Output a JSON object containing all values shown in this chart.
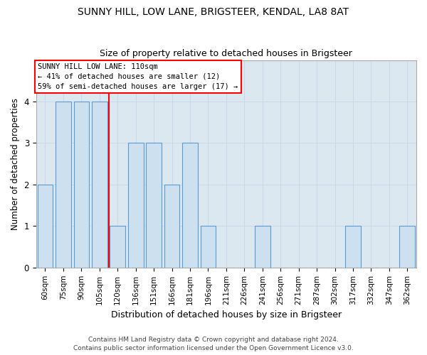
{
  "title1": "SUNNY HILL, LOW LANE, BRIGSTEER, KENDAL, LA8 8AT",
  "title2": "Size of property relative to detached houses in Brigsteer",
  "xlabel": "Distribution of detached houses by size in Brigsteer",
  "ylabel": "Number of detached properties",
  "footer1": "Contains HM Land Registry data © Crown copyright and database right 2024.",
  "footer2": "Contains public sector information licensed under the Open Government Licence v3.0.",
  "bin_labels": [
    "60sqm",
    "75sqm",
    "90sqm",
    "105sqm",
    "120sqm",
    "136sqm",
    "151sqm",
    "166sqm",
    "181sqm",
    "196sqm",
    "211sqm",
    "226sqm",
    "241sqm",
    "256sqm",
    "271sqm",
    "287sqm",
    "302sqm",
    "317sqm",
    "332sqm",
    "347sqm",
    "362sqm"
  ],
  "bar_values": [
    2,
    4,
    4,
    4,
    1,
    3,
    3,
    2,
    3,
    1,
    0,
    0,
    1,
    0,
    0,
    0,
    0,
    1,
    0,
    0,
    1
  ],
  "bar_color": "#cce0f0",
  "bar_edge_color": "#5b9bd5",
  "red_line_x": 3.5,
  "annotation_text1": "SUNNY HILL LOW LANE: 110sqm",
  "annotation_text2": "← 41% of detached houses are smaller (12)",
  "annotation_text3": "59% of semi-detached houses are larger (17) →",
  "annotation_box_color": "white",
  "annotation_box_edge": "red",
  "ylim": [
    0,
    5
  ],
  "yticks": [
    0,
    1,
    2,
    3,
    4
  ],
  "grid_color": "#c8d8e8",
  "background_color": "white",
  "axes_bg_color": "#dce8f0",
  "title1_fontsize": 10,
  "title2_fontsize": 9,
  "bar_width": 0.85
}
